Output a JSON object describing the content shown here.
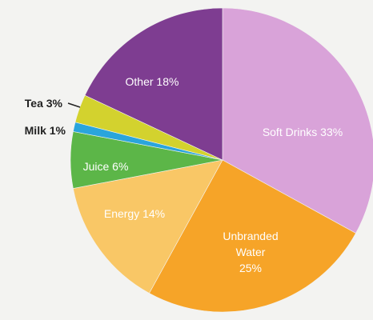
{
  "chart_data": {
    "type": "pie",
    "title": "",
    "slices": [
      {
        "key": "soft",
        "label": "Soft Drinks 33%",
        "value": 33,
        "color": "#d9a3d9",
        "text_color": "#ffffff"
      },
      {
        "key": "water",
        "label_lines": [
          "Unbranded",
          "Water",
          "25%"
        ],
        "value": 25,
        "color": "#f6a428",
        "text_color": "#ffffff"
      },
      {
        "key": "energy",
        "label": "Energy 14%",
        "value": 14,
        "color": "#f9c766",
        "text_color": "#ffffff"
      },
      {
        "key": "juice",
        "label": "Juice 6%",
        "value": 6,
        "color": "#5cb648",
        "text_color": "#ffffff"
      },
      {
        "key": "milk",
        "label": "Milk 1%",
        "value": 1,
        "color": "#2aa5dc",
        "text_color": "#222222"
      },
      {
        "key": "tea",
        "label": "Tea 3%",
        "value": 3,
        "color": "#d3d22e",
        "text_color": "#222222"
      },
      {
        "key": "other",
        "label": "Other 18%",
        "value": 18,
        "color": "#7e3d91",
        "text_color": "#ffffff"
      }
    ]
  }
}
